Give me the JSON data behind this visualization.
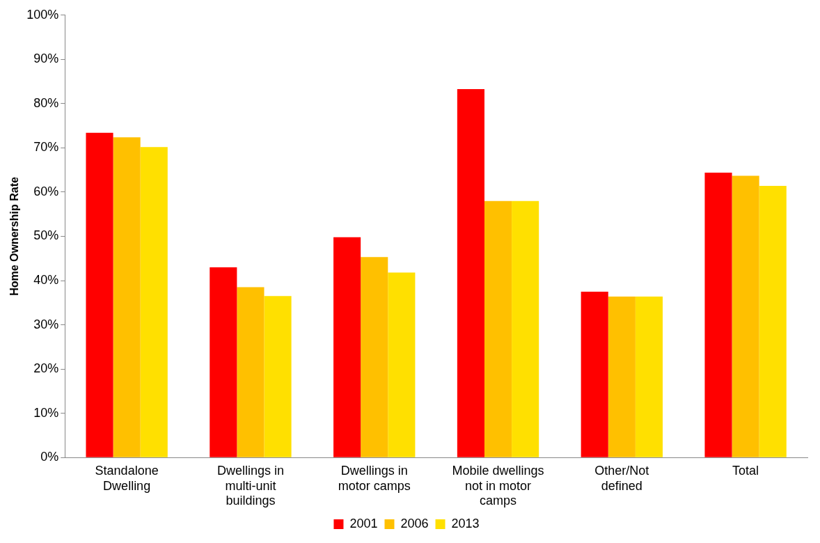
{
  "chart_data": {
    "type": "bar",
    "ylabel": "Home Ownership Rate",
    "categories": [
      "Standalone Dwelling",
      "Dwellings in multi-unit buildings",
      "Dwellings in motor camps",
      "Mobile dwellings not in motor camps",
      "Other/Not defined",
      "Total"
    ],
    "series": [
      {
        "name": "2001",
        "color": "#ff0000",
        "values": [
          73.4,
          43.0,
          49.8,
          83.3,
          37.5,
          64.4
        ]
      },
      {
        "name": "2006",
        "color": "#ffc000",
        "values": [
          72.4,
          38.5,
          45.3,
          58.0,
          36.4,
          63.7
        ]
      },
      {
        "name": "2013",
        "color": "#ffe000",
        "values": [
          70.2,
          36.5,
          41.8,
          58.0,
          36.4,
          61.4
        ]
      }
    ],
    "ylim": [
      0,
      100
    ],
    "yticks": [
      {
        "value": 0,
        "label": "0%"
      },
      {
        "value": 10,
        "label": "10%"
      },
      {
        "value": 20,
        "label": "20%"
      },
      {
        "value": 30,
        "label": "30%"
      },
      {
        "value": 40,
        "label": "40%"
      },
      {
        "value": 50,
        "label": "50%"
      },
      {
        "value": 60,
        "label": "60%"
      },
      {
        "value": 70,
        "label": "70%"
      },
      {
        "value": 80,
        "label": "80%"
      },
      {
        "value": 90,
        "label": "90%"
      },
      {
        "value": 100,
        "label": "100%"
      }
    ],
    "grid": false,
    "legend": "bottom"
  }
}
